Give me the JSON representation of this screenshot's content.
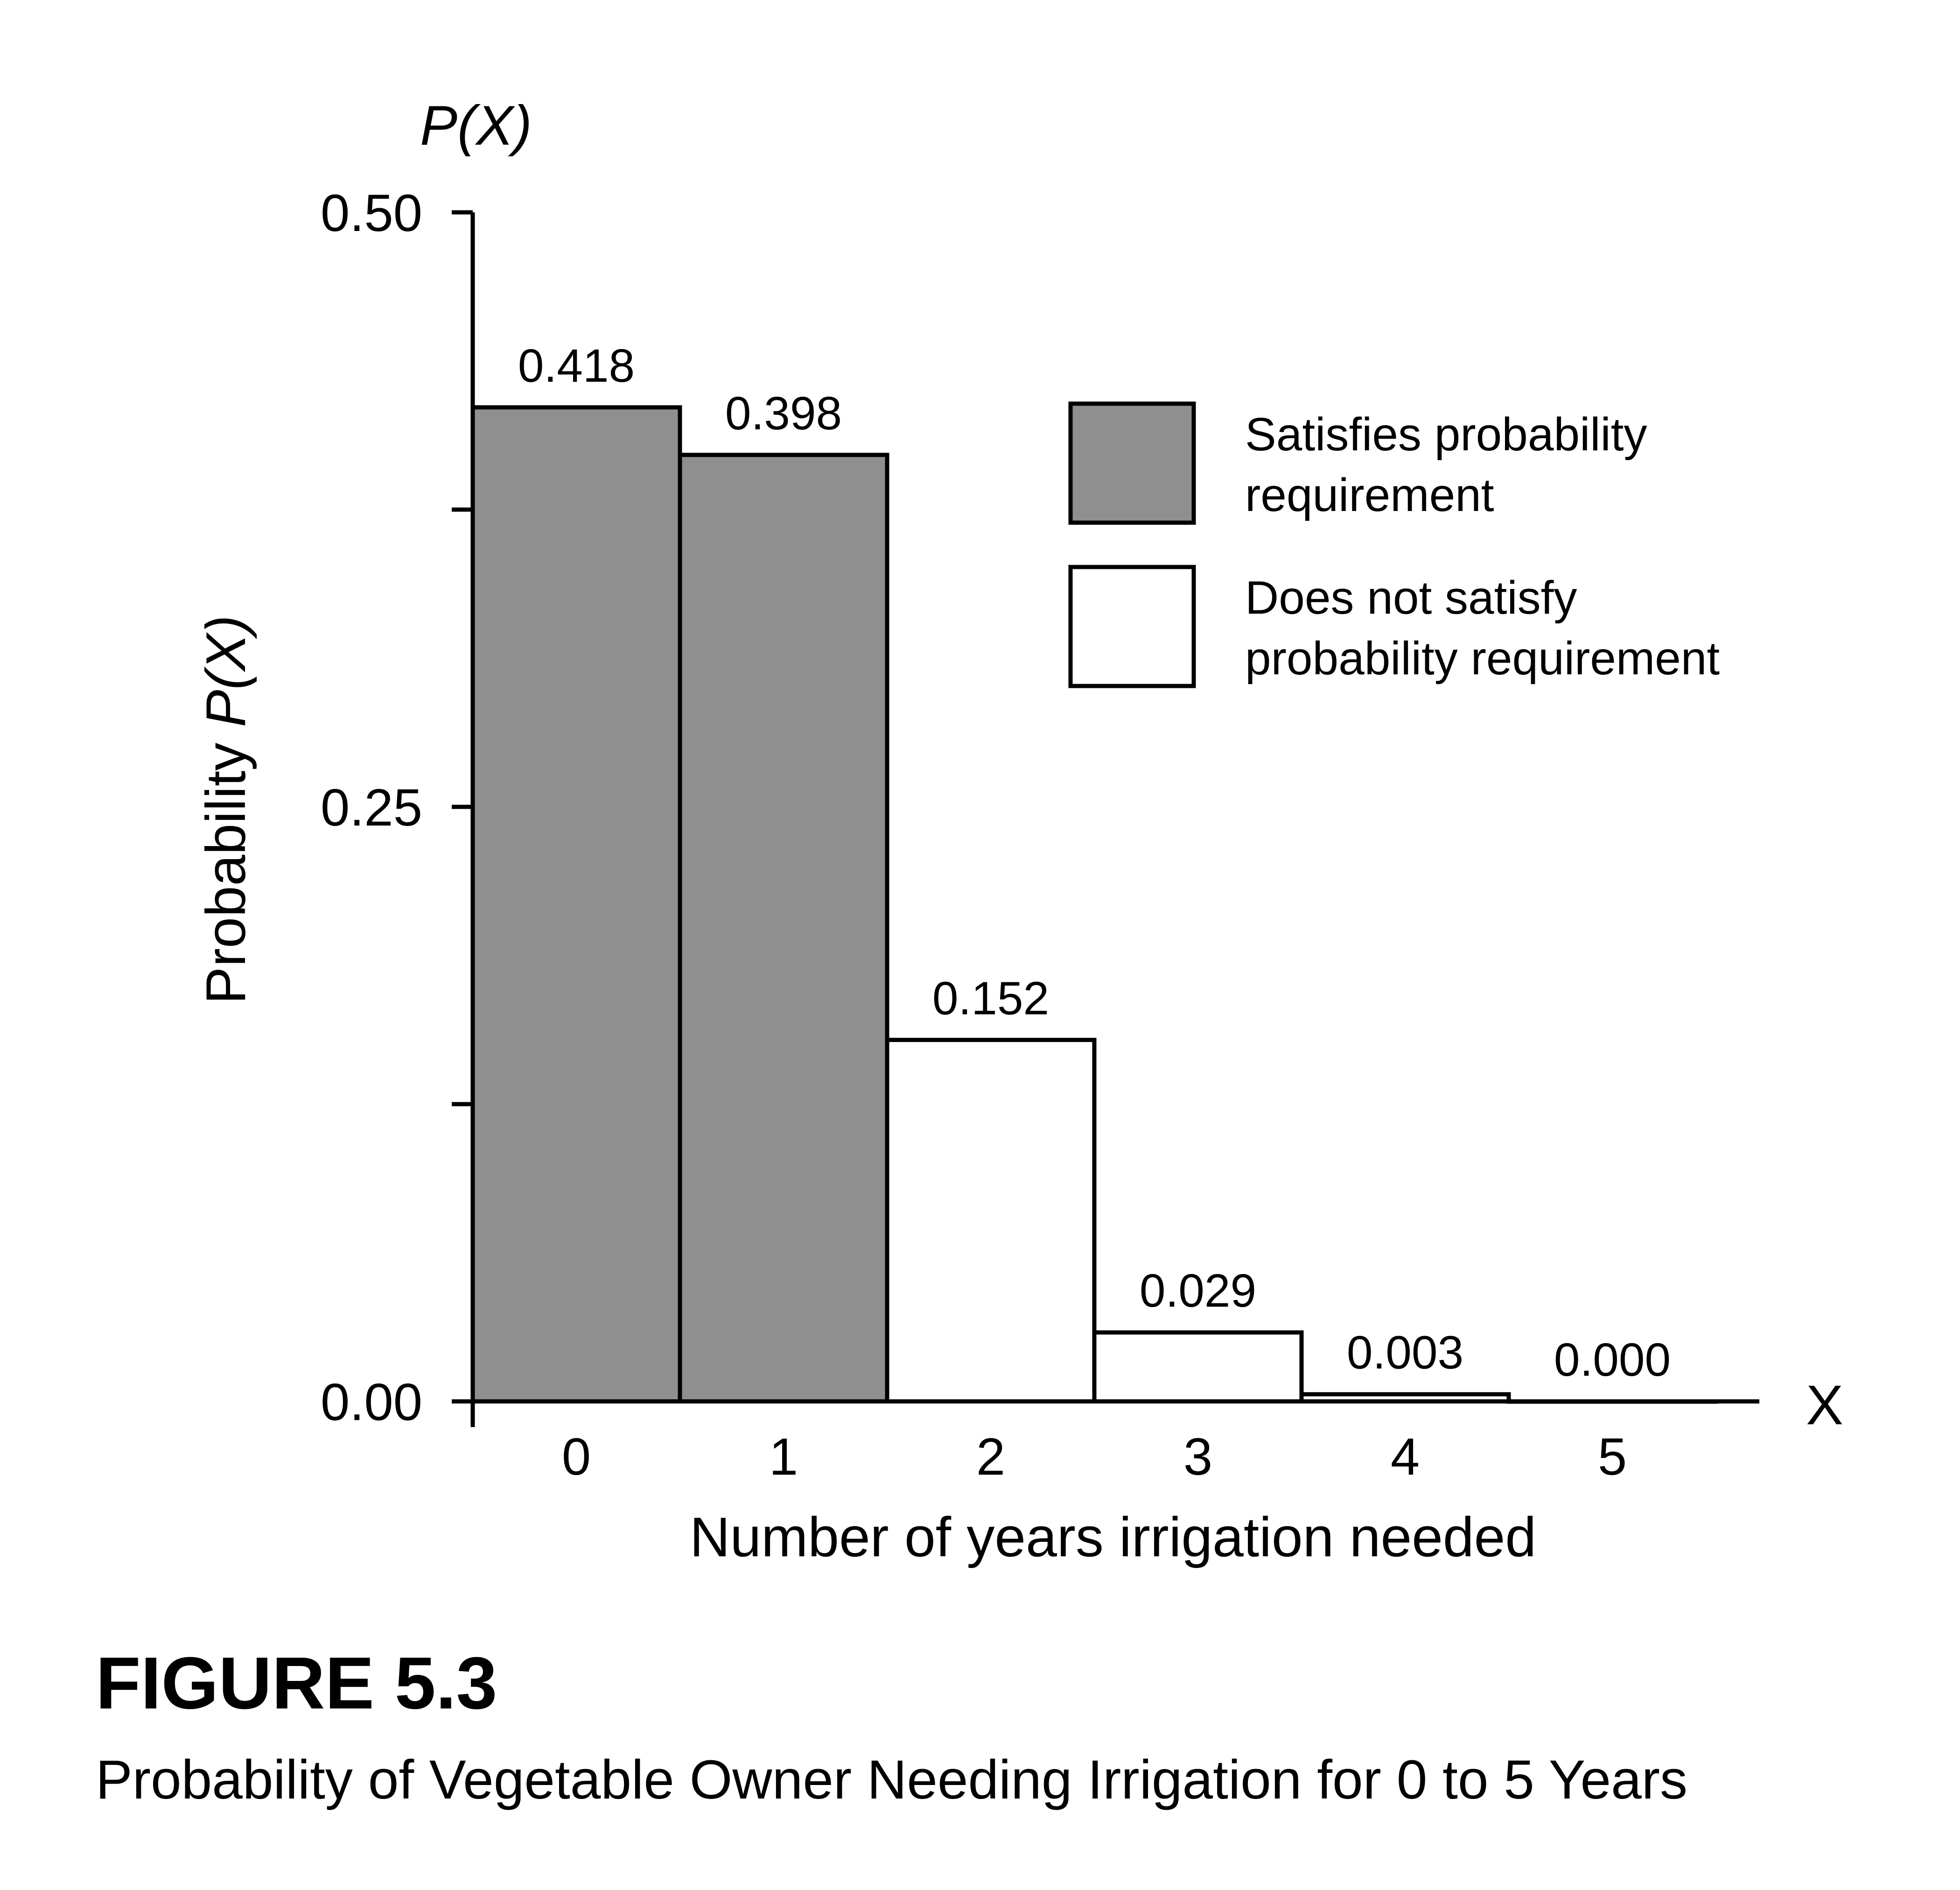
{
  "chart_data": {
    "type": "bar",
    "categories": [
      "0",
      "1",
      "2",
      "3",
      "4",
      "5"
    ],
    "values": [
      0.418,
      0.398,
      0.152,
      0.029,
      0.003,
      0.0
    ],
    "data_labels": [
      "0.418",
      "0.398",
      "0.152",
      "0.029",
      "0.003",
      "0.000"
    ],
    "satisfies": [
      true,
      true,
      false,
      false,
      false,
      false
    ],
    "ylim": [
      0,
      0.5
    ],
    "y_ticks": [
      0,
      0.125,
      0.25,
      0.375,
      0.5
    ],
    "y_tick_labels": [
      "0.00",
      "",
      "0.25",
      "",
      "0.50"
    ],
    "ylabel_prefix": "Probability ",
    "ylabel_var": "P(X)",
    "y_axis_top_label": "P(X)",
    "x_axis_end_label": "X",
    "xlabel": "Number of years irrigation needed",
    "grid": false,
    "legend": {
      "placement": "top-right",
      "entries": [
        {
          "lines": [
            "Satisfies probability",
            "requirement"
          ],
          "color": "#8f8f8f"
        },
        {
          "lines": [
            "Does not satisfy",
            "probability requirement"
          ],
          "color": "#ffffff"
        }
      ]
    }
  },
  "caption": {
    "title": "FIGURE 5.3",
    "subtitle": "Probability of Vegetable Owner Needing Irrigation for 0 to 5 Years"
  }
}
